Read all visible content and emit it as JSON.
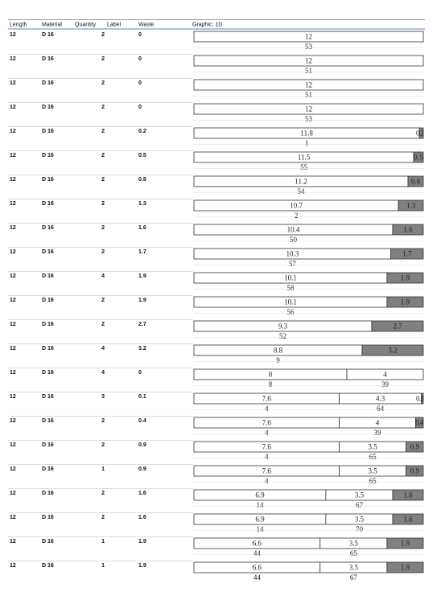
{
  "header": {
    "columns": [
      "Length",
      "Material",
      "Quantity",
      "Label",
      "Waste",
      "Graphic: 1D"
    ]
  },
  "rows": [
    {
      "length": 12,
      "material": "D 16",
      "quantity": 2,
      "waste": 0,
      "pieces": [
        {
          "length": 12,
          "label": 53
        }
      ]
    },
    {
      "length": 12,
      "material": "D 16",
      "quantity": 2,
      "waste": 0,
      "pieces": [
        {
          "length": 12,
          "label": 51
        }
      ]
    },
    {
      "length": 12,
      "material": "D 16",
      "quantity": 2,
      "waste": 0,
      "pieces": [
        {
          "length": 12,
          "label": 51
        }
      ]
    },
    {
      "length": 12,
      "material": "D 16",
      "quantity": 2,
      "waste": 0,
      "pieces": [
        {
          "length": 12,
          "label": 53
        }
      ]
    },
    {
      "length": 12,
      "material": "D 16",
      "quantity": 2,
      "waste": 0.2,
      "pieces": [
        {
          "length": 11.8,
          "label": 1
        }
      ]
    },
    {
      "length": 12,
      "material": "D 16",
      "quantity": 2,
      "waste": 0.5,
      "pieces": [
        {
          "length": 11.5,
          "label": 55
        }
      ]
    },
    {
      "length": 12,
      "material": "D 16",
      "quantity": 2,
      "waste": 0.8,
      "pieces": [
        {
          "length": 11.2,
          "label": 54
        }
      ]
    },
    {
      "length": 12,
      "material": "D 16",
      "quantity": 2,
      "waste": 1.3,
      "pieces": [
        {
          "length": 10.7,
          "label": 2
        }
      ]
    },
    {
      "length": 12,
      "material": "D 16",
      "quantity": 2,
      "waste": 1.6,
      "pieces": [
        {
          "length": 10.4,
          "label": 50
        }
      ]
    },
    {
      "length": 12,
      "material": "D 16",
      "quantity": 2,
      "waste": 1.7,
      "pieces": [
        {
          "length": 10.3,
          "label": 57
        }
      ]
    },
    {
      "length": 12,
      "material": "D 16",
      "quantity": 4,
      "waste": 1.9,
      "pieces": [
        {
          "length": 10.1,
          "label": 58
        }
      ]
    },
    {
      "length": 12,
      "material": "D 16",
      "quantity": 2,
      "waste": 1.9,
      "pieces": [
        {
          "length": 10.1,
          "label": 56
        }
      ]
    },
    {
      "length": 12,
      "material": "D 16",
      "quantity": 2,
      "waste": 2.7,
      "pieces": [
        {
          "length": 9.3,
          "label": 52
        }
      ]
    },
    {
      "length": 12,
      "material": "D 16",
      "quantity": 4,
      "waste": 3.2,
      "pieces": [
        {
          "length": 8.8,
          "label": 9
        }
      ]
    },
    {
      "length": 12,
      "material": "D 16",
      "quantity": 4,
      "waste": 0,
      "pieces": [
        {
          "length": 8,
          "label": 8
        },
        {
          "length": 4,
          "label": 39
        }
      ]
    },
    {
      "length": 12,
      "material": "D 16",
      "quantity": 3,
      "waste": 0.1,
      "pieces": [
        {
          "length": 7.6,
          "label": 4
        },
        {
          "length": 4.3,
          "label": 64
        }
      ]
    },
    {
      "length": 12,
      "material": "D 16",
      "quantity": 2,
      "waste": 0.4,
      "pieces": [
        {
          "length": 7.6,
          "label": 4
        },
        {
          "length": 4,
          "label": 39
        }
      ]
    },
    {
      "length": 12,
      "material": "D 16",
      "quantity": 2,
      "waste": 0.9,
      "pieces": [
        {
          "length": 7.6,
          "label": 4
        },
        {
          "length": 3.5,
          "label": 65
        }
      ]
    },
    {
      "length": 12,
      "material": "D 16",
      "quantity": 1,
      "waste": 0.9,
      "pieces": [
        {
          "length": 7.6,
          "label": 4
        },
        {
          "length": 3.5,
          "label": 65
        }
      ]
    },
    {
      "length": 12,
      "material": "D 16",
      "quantity": 2,
      "waste": 1.6,
      "pieces": [
        {
          "length": 6.9,
          "label": 14
        },
        {
          "length": 3.5,
          "label": 67
        }
      ]
    },
    {
      "length": 12,
      "material": "D 16",
      "quantity": 2,
      "waste": 1.6,
      "pieces": [
        {
          "length": 6.9,
          "label": 14
        },
        {
          "length": 3.5,
          "label": 70
        }
      ]
    },
    {
      "length": 12,
      "material": "D 16",
      "quantity": 1,
      "waste": 1.9,
      "pieces": [
        {
          "length": 6.6,
          "label": 44
        },
        {
          "length": 3.5,
          "label": 65
        }
      ]
    },
    {
      "length": 12,
      "material": "D 16",
      "quantity": 1,
      "waste": 1.9,
      "pieces": [
        {
          "length": 6.6,
          "label": 44
        },
        {
          "length": 3.5,
          "label": 67
        }
      ]
    }
  ]
}
